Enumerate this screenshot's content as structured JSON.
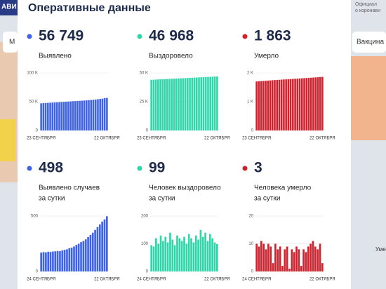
{
  "header": {
    "title": "Оперативные данные"
  },
  "background": {
    "left_tab": "АВИ",
    "right_top_1": "Официал",
    "right_top_2": "о коронави",
    "right_button": "Вакцина",
    "left_button": "М",
    "right_bottom": "Умер"
  },
  "chart_data": [
    {
      "type": "bar",
      "headline": "56 749",
      "label": [
        "Выявлено"
      ],
      "color": "#3f63e6",
      "categories": [
        "23 СЕНТЯБРЯ",
        null,
        null,
        null,
        null,
        null,
        null,
        null,
        null,
        null,
        null,
        null,
        null,
        null,
        null,
        null,
        null,
        null,
        null,
        null,
        null,
        null,
        null,
        null,
        null,
        null,
        null,
        null,
        null,
        "22 ОКТЯБРЯ"
      ],
      "values": [
        47200,
        47500,
        47800,
        48050,
        48300,
        48550,
        48800,
        49050,
        49300,
        49550,
        49800,
        50050,
        50300,
        50550,
        50800,
        51050,
        51300,
        51550,
        51800,
        52050,
        52350,
        52700,
        53050,
        53450,
        53850,
        54300,
        54800,
        55300,
        56251,
        56749
      ],
      "ylim": [
        0,
        100000
      ],
      "yticks": [
        0,
        {
          "value": 50000,
          "label": "50 K"
        },
        {
          "value": 100000,
          "label": "100 K"
        }
      ]
    },
    {
      "type": "bar",
      "headline": "46 968",
      "label": [
        "Выздоровело"
      ],
      "color": "#2fd6a9",
      "categories": [
        "23 СЕНТЯБРЯ",
        null,
        null,
        null,
        null,
        null,
        null,
        null,
        null,
        null,
        null,
        null,
        null,
        null,
        null,
        null,
        null,
        null,
        null,
        null,
        null,
        null,
        null,
        null,
        null,
        null,
        null,
        null,
        null,
        "22 ОКТЯБРЯ"
      ],
      "values": [
        44050,
        44150,
        44250,
        44350,
        44450,
        44550,
        44650,
        44750,
        44850,
        44950,
        45050,
        45150,
        45250,
        45350,
        45450,
        45550,
        45650,
        45750,
        45850,
        45950,
        46050,
        46150,
        46250,
        46350,
        46450,
        46550,
        46650,
        46750,
        46869,
        46968
      ],
      "ylim": [
        0,
        50000
      ],
      "yticks": [
        0,
        {
          "value": 25000,
          "label": "25 K"
        },
        {
          "value": 50000,
          "label": "50 K"
        }
      ]
    },
    {
      "type": "bar",
      "headline": "1 863",
      "label": [
        "Умерло"
      ],
      "color": "#d2202c",
      "categories": [
        "23 СЕНТЯБРЯ",
        null,
        null,
        null,
        null,
        null,
        null,
        null,
        null,
        null,
        null,
        null,
        null,
        null,
        null,
        null,
        null,
        null,
        null,
        null,
        null,
        null,
        null,
        null,
        null,
        null,
        null,
        null,
        null,
        "22 ОКТЯБРЯ"
      ],
      "values": [
        1705,
        1712,
        1718,
        1723,
        1729,
        1735,
        1740,
        1746,
        1751,
        1757,
        1762,
        1768,
        1773,
        1778,
        1783,
        1789,
        1794,
        1799,
        1804,
        1809,
        1814,
        1819,
        1824,
        1829,
        1835,
        1840,
        1846,
        1851,
        1860,
        1863
      ],
      "ylim": [
        0,
        2000
      ],
      "yticks": [
        0,
        {
          "value": 1000,
          "label": "1 K"
        },
        {
          "value": 2000,
          "label": "2 K"
        }
      ]
    },
    {
      "type": "bar",
      "headline": "498",
      "label": [
        "Выявлено случаев",
        "за сутки"
      ],
      "color": "#3f63e6",
      "categories": [
        "24 СЕНТЯБРЯ",
        null,
        null,
        null,
        null,
        null,
        null,
        null,
        null,
        null,
        null,
        null,
        null,
        null,
        null,
        null,
        null,
        null,
        null,
        null,
        null,
        null,
        null,
        null,
        null,
        null,
        null,
        null,
        "22 ОКТЯБРЯ"
      ],
      "values": [
        170,
        175,
        172,
        178,
        176,
        180,
        182,
        185,
        183,
        190,
        195,
        200,
        210,
        215,
        225,
        240,
        250,
        265,
        275,
        290,
        310,
        330,
        350,
        375,
        400,
        425,
        450,
        470,
        498
      ],
      "ylim": [
        0,
        500
      ],
      "yticks": [
        0,
        500
      ]
    },
    {
      "type": "bar",
      "headline": "99",
      "label": [
        "Человек выздоровело",
        "за сутки"
      ],
      "color": "#2fd6a9",
      "categories": [
        "24 СЕНТЯБРЯ",
        null,
        null,
        null,
        null,
        null,
        null,
        null,
        null,
        null,
        null,
        null,
        null,
        null,
        null,
        null,
        null,
        null,
        null,
        null,
        null,
        null,
        null,
        null,
        null,
        null,
        null,
        null,
        "22 ОКТЯБРЯ"
      ],
      "values": [
        95,
        90,
        120,
        100,
        130,
        110,
        125,
        105,
        140,
        115,
        95,
        130,
        120,
        110,
        125,
        100,
        135,
        120,
        105,
        130,
        115,
        150,
        125,
        140,
        110,
        135,
        120,
        105,
        99
      ],
      "ylim": [
        0,
        200
      ],
      "yticks": [
        0,
        100,
        200
      ]
    },
    {
      "type": "bar",
      "headline": "3",
      "label": [
        "Человека умерло",
        "за сутки"
      ],
      "color": "#d2202c",
      "categories": [
        "24 СЕНТЯБРЯ",
        null,
        null,
        null,
        null,
        null,
        null,
        null,
        null,
        null,
        null,
        null,
        null,
        null,
        null,
        null,
        null,
        null,
        null,
        null,
        null,
        null,
        null,
        null,
        null,
        null,
        null,
        null,
        "22 ОКТЯБРЯ"
      ],
      "values": [
        10,
        9,
        11,
        10,
        8,
        10,
        9,
        3,
        10,
        8,
        9,
        2,
        8,
        9,
        1,
        8,
        7,
        9,
        8,
        2,
        8,
        7,
        9,
        10,
        11,
        9,
        8,
        10,
        3
      ],
      "ylim": [
        0,
        20
      ],
      "yticks": [
        0,
        10,
        20
      ]
    }
  ]
}
